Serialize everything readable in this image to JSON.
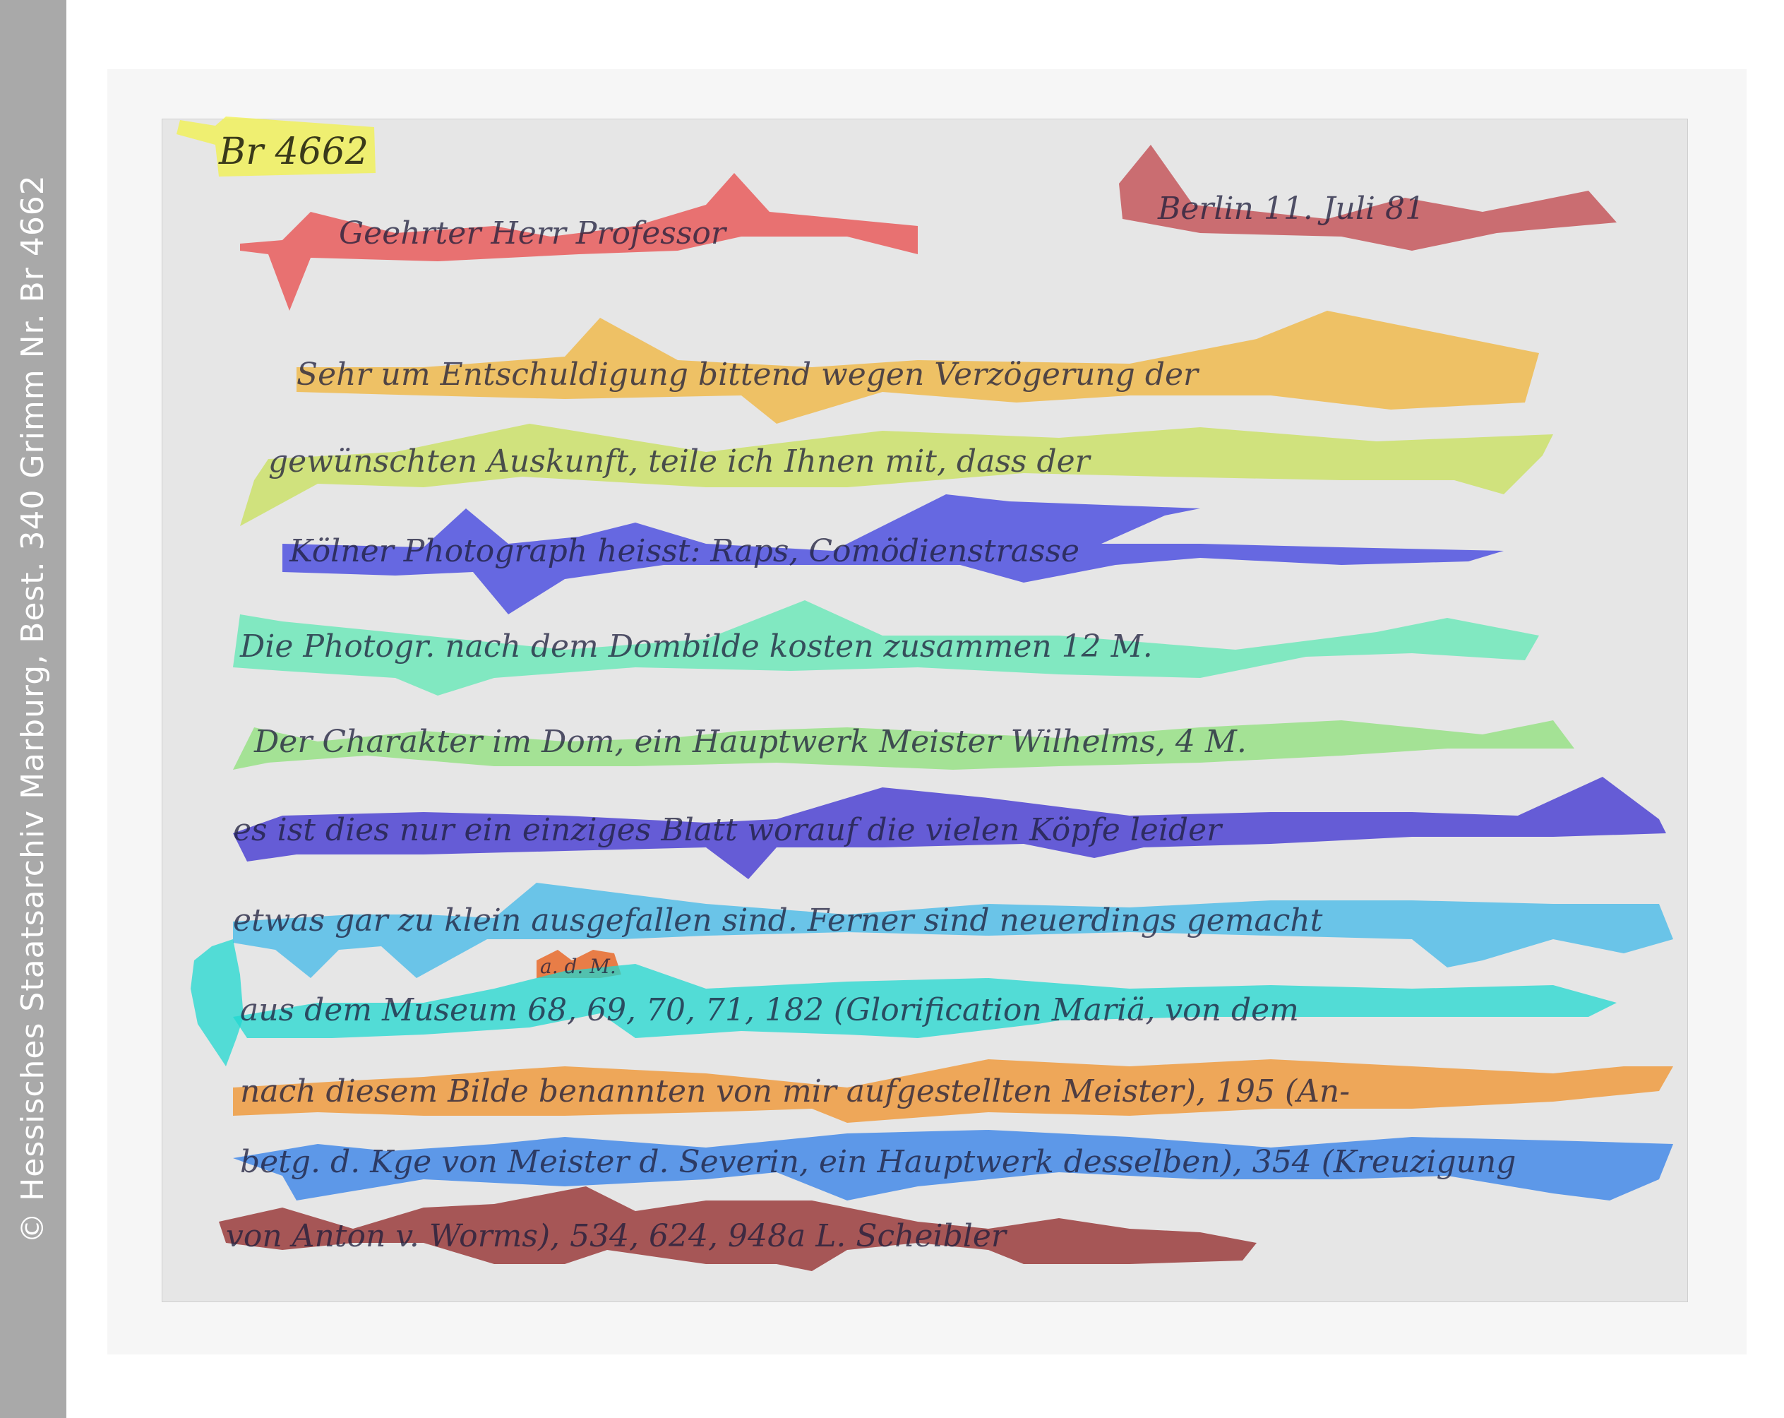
{
  "copyright": "© Hessisches Staatsarchiv Marburg, Best. 340 Grimm Nr. Br 4662",
  "document": {
    "archive_number": "Br 4662",
    "lines": [
      {
        "id": "line-1",
        "color": "#e8494a",
        "text": "Geehrter Herr Professor"
      },
      {
        "id": "line-date",
        "color": "#c0444a",
        "text": "Berlin 11. Juli 81"
      },
      {
        "id": "line-2",
        "color": "#f0b43a",
        "text": "Sehr um Entschuldigung bittend wegen Verzögerung der"
      },
      {
        "id": "line-3",
        "color": "#c8e05a",
        "text": "gewünschten Auskunft, teile ich Ihnen mit, dass der"
      },
      {
        "id": "line-4",
        "color": "#3b3ddf",
        "text": "Kölner Photograph heisst: Raps, Comödienstrasse"
      },
      {
        "id": "line-5",
        "color": "#5fe8b4",
        "text": "Die Photogr. nach dem Dombilde kosten zusammen 12 M."
      },
      {
        "id": "line-6",
        "color": "#8de07a",
        "text": "Der Charakter im Dom, ein Hauptwerk Meister Wilhelms, 4 M."
      },
      {
        "id": "line-7",
        "color": "#3a2ed0",
        "text": "es ist dies nur ein einziges Blatt worauf die vielen Köpfe leider"
      },
      {
        "id": "line-8",
        "color": "#40b8e8",
        "text": "etwas gar zu klein ausgefallen sind. Ferner sind neuerdings gemacht"
      },
      {
        "id": "line-insert",
        "color": "#e86a2a",
        "text": "a. d. M."
      },
      {
        "id": "line-9",
        "color": "#20d8d0",
        "text": "aus dem Museum 68, 69, 70, 71, 182 (Glorification Mariä, von dem"
      },
      {
        "id": "line-10",
        "color": "#f0922a",
        "text": "nach diesem Bilde benannten von mir aufgestellten Meister), 195 (An-"
      },
      {
        "id": "line-11",
        "color": "#2f7ee8",
        "text": "betg. d. Kge von Meister d. Severin, ein Hauptwerk desselben), 354 (Kreuzigung"
      },
      {
        "id": "line-12",
        "color": "#8a1818",
        "text": "von Anton v. Worms), 534, 624, 948a     L. Scheibler"
      }
    ]
  }
}
